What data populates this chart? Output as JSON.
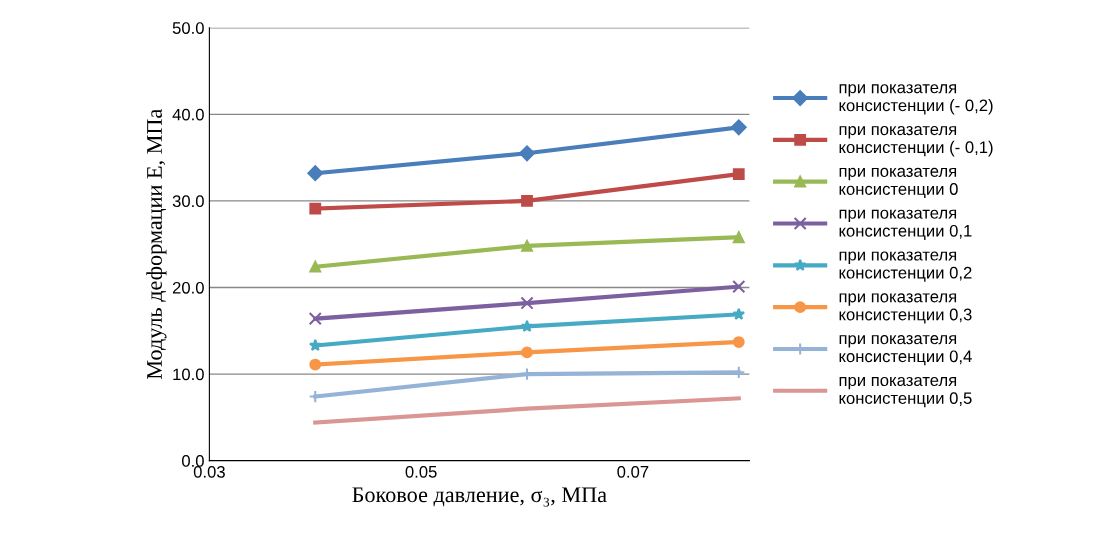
{
  "chart_data": {
    "type": "line",
    "xlabel": "Боковое давление, σ₃, МПа",
    "ylabel": "Модуль деформации Е, МПа",
    "xlim": [
      0.03,
      0.081
    ],
    "xticks": [
      {
        "value": 0.03,
        "label": "0.03"
      },
      {
        "value": 0.05,
        "label": "0.05"
      },
      {
        "value": 0.07,
        "label": "0.07"
      }
    ],
    "ylim": [
      0,
      50
    ],
    "yticks": [
      {
        "value": 0,
        "label": "0.0"
      },
      {
        "value": 10,
        "label": "10.0"
      },
      {
        "value": 20,
        "label": "20.0"
      },
      {
        "value": 30,
        "label": "30.0"
      },
      {
        "value": 40,
        "label": "40.0"
      },
      {
        "value": 50,
        "label": "50.0"
      }
    ],
    "grid": "y",
    "legend": "right",
    "x": [
      0.04,
      0.06,
      0.08
    ],
    "series": [
      {
        "name": "при показателя консистенции (- 0,2)",
        "color": "#4a7ebb",
        "marker": "diamond",
        "values": [
          33.2,
          35.5,
          38.5
        ]
      },
      {
        "name": "при показателя консистенции (- 0,1)",
        "color": "#be4b48",
        "marker": "square",
        "values": [
          29.1,
          30.0,
          33.1
        ]
      },
      {
        "name": "при показателя консистенции 0",
        "color": "#98b954",
        "marker": "triangle",
        "values": [
          22.4,
          24.8,
          25.8
        ]
      },
      {
        "name": "при показателя консистенции 0,1",
        "color": "#7d60a0",
        "marker": "cross",
        "values": [
          16.4,
          18.2,
          20.1
        ]
      },
      {
        "name": "при показателя консистенции 0,2",
        "color": "#46aac5",
        "marker": "star",
        "values": [
          13.3,
          15.5,
          16.9
        ]
      },
      {
        "name": "при показателя консистенции 0,3",
        "color": "#f79646",
        "marker": "circle",
        "values": [
          11.1,
          12.5,
          13.7
        ]
      },
      {
        "name": "при показателя консистенции 0,4",
        "color": "#95b3d7",
        "marker": "plus",
        "values": [
          7.4,
          10.0,
          10.2
        ]
      },
      {
        "name": "при показателя консистенции 0,5",
        "color": "#d99694",
        "marker": "none",
        "values": [
          4.4,
          6.0,
          7.2
        ]
      }
    ]
  }
}
